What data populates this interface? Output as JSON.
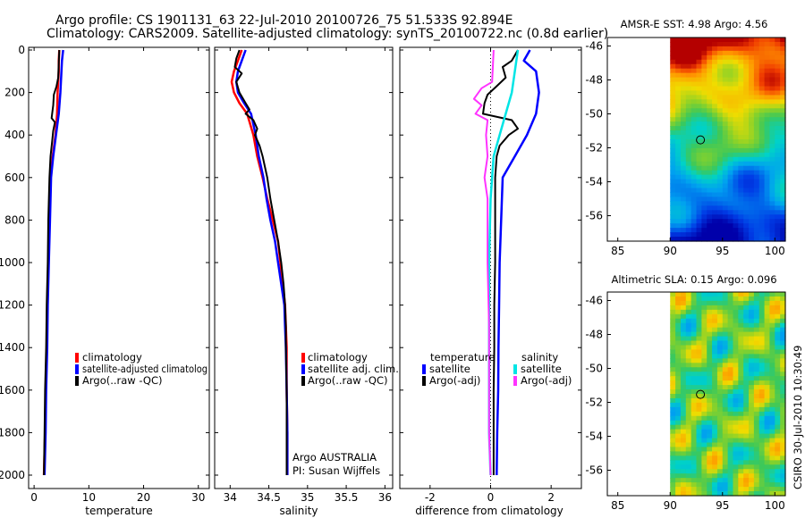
{
  "header": {
    "line1": "Argo profile: CS 1901131_63 22-Jul-2010 20100726_75 51.533S 92.894E",
    "line2": "Climatology: CARS2009. Satellite-adjusted climatology: synTS_20100722.nc (0.8d earlier)"
  },
  "colors": {
    "red": "#ff0000",
    "blue": "#0000ff",
    "black": "#000000",
    "cyan": "#00e5e5",
    "magenta": "#ff33ff"
  },
  "depth_axis": {
    "ticks": [
      "0",
      "200",
      "400",
      "600",
      "800",
      "1000",
      "1200",
      "1400",
      "1600",
      "1800",
      "2000"
    ],
    "ylim": [
      0,
      2050
    ]
  },
  "chart_data": [
    {
      "type": "line",
      "id": "temperature",
      "xlabel": "temperature",
      "xlim": [
        -1,
        32
      ],
      "xticks": [
        0,
        10,
        20,
        30
      ],
      "xtick_labels": [
        "0",
        "10",
        "20",
        "30"
      ],
      "legend": [
        "climatology",
        "satellite-adjusted climatolog",
        "Argo(..raw -QC)"
      ],
      "series": [
        {
          "name": "climatology",
          "color": "red",
          "width": 2.5,
          "points": [
            [
              4.6,
              0
            ],
            [
              4.5,
              50
            ],
            [
              4.5,
              100
            ],
            [
              4.3,
              200
            ],
            [
              4.2,
              300
            ],
            [
              3.9,
              400
            ],
            [
              3.4,
              500
            ],
            [
              3.0,
              600
            ],
            [
              2.8,
              800
            ],
            [
              2.6,
              1000
            ],
            [
              2.4,
              1200
            ],
            [
              2.3,
              1400
            ],
            [
              2.1,
              1600
            ],
            [
              2.0,
              1800
            ],
            [
              1.8,
              2000
            ]
          ]
        },
        {
          "name": "satellite-adjusted climatology",
          "color": "blue",
          "width": 2.5,
          "points": [
            [
              5.3,
              0
            ],
            [
              5.1,
              50
            ],
            [
              5.0,
              100
            ],
            [
              4.8,
              200
            ],
            [
              4.5,
              300
            ],
            [
              4.0,
              400
            ],
            [
              3.5,
              500
            ],
            [
              3.1,
              600
            ],
            [
              2.9,
              800
            ],
            [
              2.7,
              1000
            ],
            [
              2.5,
              1200
            ],
            [
              2.4,
              1400
            ],
            [
              2.2,
              1600
            ],
            [
              2.1,
              1800
            ],
            [
              1.9,
              2000
            ]
          ]
        },
        {
          "name": "Argo(..raw -QC)",
          "color": "black",
          "width": 2,
          "points": [
            [
              4.6,
              0
            ],
            [
              4.5,
              60
            ],
            [
              4.4,
              130
            ],
            [
              4.1,
              170
            ],
            [
              3.6,
              210
            ],
            [
              3.5,
              260
            ],
            [
              3.3,
              300
            ],
            [
              3.2,
              320
            ],
            [
              3.8,
              340
            ],
            [
              3.5,
              380
            ],
            [
              3.3,
              430
            ],
            [
              3.0,
              500
            ],
            [
              2.8,
              600
            ],
            [
              2.6,
              800
            ],
            [
              2.5,
              1000
            ],
            [
              2.3,
              1200
            ],
            [
              2.2,
              1400
            ],
            [
              2.0,
              1600
            ],
            [
              1.9,
              1800
            ],
            [
              1.8,
              2000
            ]
          ]
        }
      ]
    },
    {
      "type": "line",
      "id": "salinity",
      "xlabel": "salinity",
      "xlim": [
        33.8,
        36.1
      ],
      "xticks": [
        34,
        34.5,
        35,
        35.5,
        36
      ],
      "xtick_labels": [
        "34",
        "34.5",
        "35",
        "35.5",
        "36"
      ],
      "legend": [
        "climatology",
        "satellite adj. clim.",
        "Argo(..raw -QC)"
      ],
      "annotations": [
        "Argo AUSTRALIA",
        "PI: Susan Wijffels"
      ],
      "series": [
        {
          "name": "climatology",
          "color": "red",
          "width": 2.5,
          "points": [
            [
              34.15,
              0
            ],
            [
              34.1,
              50
            ],
            [
              34.05,
              100
            ],
            [
              34.02,
              150
            ],
            [
              34.05,
              200
            ],
            [
              34.12,
              250
            ],
            [
              34.22,
              300
            ],
            [
              34.3,
              400
            ],
            [
              34.35,
              500
            ],
            [
              34.42,
              600
            ],
            [
              34.48,
              700
            ],
            [
              34.55,
              800
            ],
            [
              34.62,
              900
            ],
            [
              34.65,
              1000
            ],
            [
              34.68,
              1100
            ],
            [
              34.71,
              1200
            ],
            [
              34.72,
              1300
            ],
            [
              34.73,
              1400
            ],
            [
              34.73,
              1600
            ],
            [
              34.74,
              1800
            ],
            [
              34.74,
              2000
            ]
          ]
        },
        {
          "name": "satellite adj. clim.",
          "color": "blue",
          "width": 2.5,
          "points": [
            [
              34.2,
              0
            ],
            [
              34.15,
              50
            ],
            [
              34.1,
              100
            ],
            [
              34.08,
              150
            ],
            [
              34.1,
              200
            ],
            [
              34.18,
              250
            ],
            [
              34.27,
              300
            ],
            [
              34.33,
              400
            ],
            [
              34.37,
              500
            ],
            [
              34.43,
              600
            ],
            [
              34.47,
              700
            ],
            [
              34.52,
              800
            ],
            [
              34.58,
              900
            ],
            [
              34.62,
              1000
            ],
            [
              34.66,
              1100
            ],
            [
              34.7,
              1200
            ],
            [
              34.71,
              1300
            ],
            [
              34.72,
              1400
            ],
            [
              34.73,
              1600
            ],
            [
              34.74,
              1800
            ],
            [
              34.74,
              2000
            ]
          ]
        },
        {
          "name": "Argo(..raw -QC)",
          "color": "black",
          "width": 2,
          "points": [
            [
              34.12,
              0
            ],
            [
              34.08,
              40
            ],
            [
              34.06,
              80
            ],
            [
              34.15,
              110
            ],
            [
              34.08,
              150
            ],
            [
              34.12,
              200
            ],
            [
              34.2,
              250
            ],
            [
              34.25,
              280
            ],
            [
              34.2,
              300
            ],
            [
              34.3,
              330
            ],
            [
              34.35,
              370
            ],
            [
              34.32,
              400
            ],
            [
              34.38,
              450
            ],
            [
              34.42,
              500
            ],
            [
              34.45,
              550
            ],
            [
              34.48,
              600
            ],
            [
              34.52,
              700
            ],
            [
              34.57,
              800
            ],
            [
              34.62,
              900
            ],
            [
              34.66,
              1000
            ],
            [
              34.69,
              1100
            ],
            [
              34.71,
              1200
            ],
            [
              34.72,
              1300
            ],
            [
              34.72,
              1400
            ],
            [
              34.73,
              1600
            ],
            [
              34.73,
              1800
            ],
            [
              34.73,
              2000
            ]
          ]
        }
      ]
    },
    {
      "type": "line",
      "id": "difference",
      "xlabel": "difference from climatology",
      "xlim": [
        -3.0,
        3.0
      ],
      "xticks": [
        -2,
        0,
        2
      ],
      "xtick_labels": [
        "-2",
        "0",
        "2"
      ],
      "legend_headers": [
        "temperature",
        "salinity"
      ],
      "legend": [
        "satellite",
        "Argo(-adj)",
        "satellite",
        "Argo(-adj)"
      ],
      "series": [
        {
          "name": "temperature satellite",
          "color": "blue",
          "width": 2.5,
          "points": [
            [
              1.3,
              0
            ],
            [
              1.1,
              50
            ],
            [
              1.5,
              100
            ],
            [
              1.6,
              200
            ],
            [
              1.5,
              300
            ],
            [
              1.2,
              400
            ],
            [
              0.8,
              500
            ],
            [
              0.4,
              600
            ],
            [
              0.35,
              800
            ],
            [
              0.3,
              1000
            ],
            [
              0.28,
              1200
            ],
            [
              0.26,
              1400
            ],
            [
              0.25,
              1600
            ],
            [
              0.22,
              1800
            ],
            [
              0.2,
              2000
            ]
          ]
        },
        {
          "name": "temperature Argo(-adj)",
          "color": "black",
          "width": 2,
          "points": [
            [
              0.9,
              0
            ],
            [
              0.7,
              50
            ],
            [
              0.4,
              80
            ],
            [
              0.5,
              130
            ],
            [
              0.2,
              170
            ],
            [
              -0.1,
              210
            ],
            [
              -0.2,
              250
            ],
            [
              -0.25,
              300
            ],
            [
              0.7,
              330
            ],
            [
              0.9,
              370
            ],
            [
              0.6,
              400
            ],
            [
              0.3,
              450
            ],
            [
              0.2,
              500
            ],
            [
              0.15,
              600
            ],
            [
              0.15,
              800
            ],
            [
              0.15,
              1000
            ],
            [
              0.12,
              1200
            ],
            [
              0.12,
              1400
            ],
            [
              0.1,
              1600
            ],
            [
              0.1,
              1800
            ],
            [
              0.1,
              2000
            ]
          ]
        },
        {
          "name": "salinity satellite",
          "color": "cyan",
          "width": 2.5,
          "points": [
            [
              0.9,
              0
            ],
            [
              0.8,
              100
            ],
            [
              0.7,
              200
            ],
            [
              0.5,
              300
            ],
            [
              0.3,
              400
            ],
            [
              0.1,
              500
            ],
            [
              0.0,
              700
            ],
            [
              -0.05,
              1000
            ],
            [
              -0.05,
              1400
            ],
            [
              -0.05,
              1800
            ],
            [
              0.0,
              2000
            ]
          ]
        },
        {
          "name": "salinity Argo(-adj)",
          "color": "magenta",
          "width": 2,
          "points": [
            [
              0.1,
              0
            ],
            [
              0.05,
              150
            ],
            [
              -0.3,
              180
            ],
            [
              -0.55,
              230
            ],
            [
              -0.3,
              260
            ],
            [
              -0.5,
              300
            ],
            [
              -0.1,
              330
            ],
            [
              -0.15,
              400
            ],
            [
              -0.1,
              500
            ],
            [
              -0.2,
              600
            ],
            [
              -0.1,
              700
            ],
            [
              -0.1,
              1000
            ],
            [
              -0.05,
              1300
            ],
            [
              -0.05,
              1600
            ],
            [
              -0.05,
              1800
            ],
            [
              0.0,
              2000
            ]
          ]
        }
      ]
    },
    {
      "type": "heatmap",
      "id": "sst-map",
      "title": "AMSR-E SST: 4.98 Argo: 4.56",
      "xlim": [
        84,
        101
      ],
      "ylim": [
        -57.5,
        -45.5
      ],
      "xticks": [
        "85",
        "90",
        "95",
        "100"
      ],
      "yticks": [
        "-46",
        "-48",
        "-50",
        "-52",
        "-54",
        "-56"
      ],
      "data_lon_range": [
        90,
        101
      ],
      "marker": {
        "lon": 92.894,
        "lat": -51.533
      }
    },
    {
      "type": "heatmap",
      "id": "sla-map",
      "title": "Altimetric SLA: 0.15 Argo: 0.096",
      "xlim": [
        84,
        101
      ],
      "ylim": [
        -57.5,
        -45.5
      ],
      "xticks": [
        "85",
        "90",
        "95",
        "100"
      ],
      "yticks": [
        "-46",
        "-48",
        "-50",
        "-52",
        "-54",
        "-56"
      ],
      "data_lon_range": [
        90,
        101
      ],
      "marker": {
        "lon": 92.894,
        "lat": -51.533
      }
    }
  ],
  "side_label": "CSIRO 30-Jul-2010 10:30:49"
}
